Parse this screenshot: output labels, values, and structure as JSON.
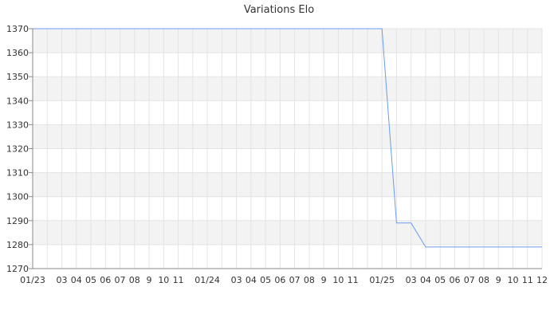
{
  "chart_data": {
    "type": "line",
    "title": "Variations Elo",
    "xlabel": "",
    "ylabel": "",
    "ylim": [
      1270,
      1370
    ],
    "yticks": [
      1270,
      1280,
      1290,
      1300,
      1310,
      1320,
      1330,
      1340,
      1350,
      1360,
      1370
    ],
    "grid": true,
    "banded_rows": true,
    "line_color": "#6a9bf4",
    "x_tick_labels": [
      "01/23",
      "",
      "03",
      "04",
      "05",
      "06",
      "07",
      "08",
      "9",
      "10",
      "11",
      "",
      "01/24",
      "",
      "03",
      "04",
      "05",
      "06",
      "07",
      "08",
      "9",
      "10",
      "11",
      "",
      "01/25",
      "",
      "03",
      "04",
      "05",
      "06",
      "07",
      "08",
      "9",
      "10",
      "11",
      "12"
    ],
    "x": [
      "2023-01",
      "2023-02",
      "2023-03",
      "2023-04",
      "2023-05",
      "2023-06",
      "2023-07",
      "2023-08",
      "2023-09",
      "2023-10",
      "2023-11",
      "2023-12",
      "2024-01",
      "2024-02",
      "2024-03",
      "2024-04",
      "2024-05",
      "2024-06",
      "2024-07",
      "2024-08",
      "2024-09",
      "2024-10",
      "2024-11",
      "2024-12",
      "2025-01",
      "2025-02",
      "2025-03",
      "2025-04",
      "2025-05",
      "2025-06",
      "2025-07",
      "2025-08",
      "2025-09",
      "2025-10",
      "2025-11",
      "2025-12"
    ],
    "values": [
      1370,
      1370,
      1370,
      1370,
      1370,
      1370,
      1370,
      1370,
      1370,
      1370,
      1370,
      1370,
      1370,
      1370,
      1370,
      1370,
      1370,
      1370,
      1370,
      1370,
      1370,
      1370,
      1370,
      1370,
      1370,
      1289,
      1289,
      1279,
      1279,
      1279,
      1279,
      1279,
      1279,
      1279,
      1279,
      1279
    ]
  }
}
